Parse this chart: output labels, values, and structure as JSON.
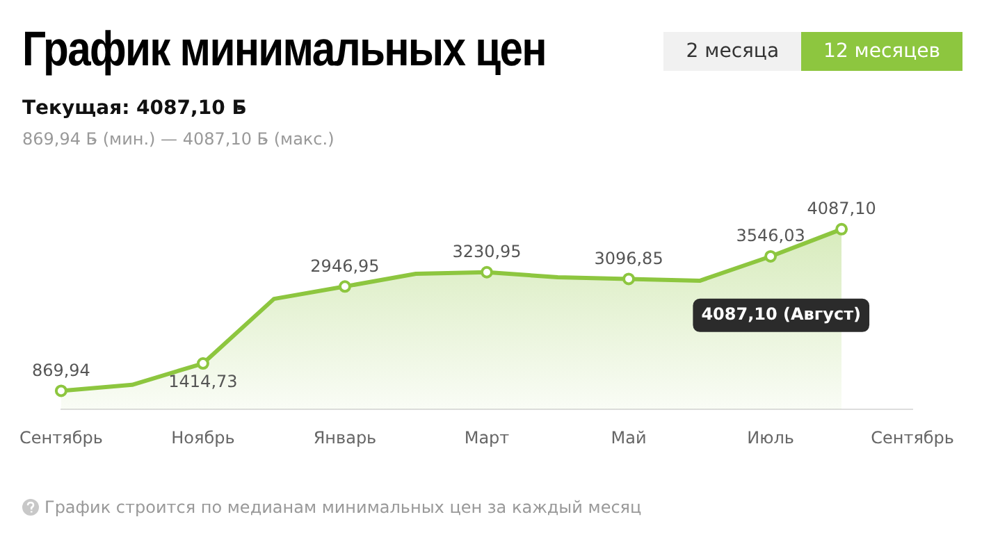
{
  "chart_data": {
    "type": "line",
    "title": "График минимальных цен",
    "subtitle": "Текущая: 4087,10 Б̵",
    "annotations": [
      "869,94 Б̵ (мин.) — 4087,10 Б̵ (макс.)",
      "4087,10 (Август)",
      "График строится по медианам минимальных цен за каждый месяц",
      "2 месяца",
      "12 месяцев"
    ],
    "categories": [
      "Сентябрь",
      null,
      "Ноябрь",
      null,
      "Январь",
      null,
      "Март",
      null,
      "Май",
      null,
      "Июль",
      null,
      "Сентябрь"
    ],
    "series": [
      {
        "color": "#8dc63f",
        "values": [
          869.94,
          990,
          1414.73,
          2700,
          2946.95,
          3200,
          3230.95,
          3130,
          3096.85,
          3060,
          3546.03,
          4087.1,
          null
        ],
        "value_labels": [
          "869,94",
          null,
          "1414,73",
          null,
          "2946,95",
          null,
          "3230,95",
          null,
          "3096,85",
          null,
          "3546,03",
          "4087,10",
          null
        ]
      }
    ],
    "marker": "circle",
    "grid": false,
    "legend": false
  }
}
